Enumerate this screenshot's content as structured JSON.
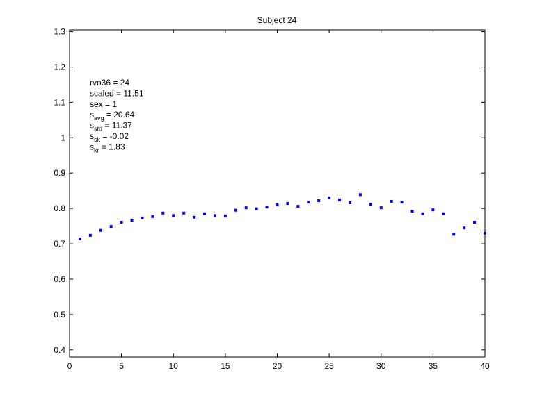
{
  "chart_data": {
    "type": "scatter",
    "title": "Subject 24",
    "xlabel": "",
    "ylabel": "",
    "xlim": [
      0,
      40
    ],
    "ylim": [
      0.38,
      1.305
    ],
    "xticks": [
      "0",
      "5",
      "10",
      "15",
      "20",
      "25",
      "30",
      "35",
      "40"
    ],
    "yticks": [
      "0.4",
      "0.5",
      "0.6",
      "0.7",
      "0.8",
      "0.9",
      "1",
      "1.1",
      "1.2",
      "1.3"
    ],
    "grid": false,
    "marker_color": "#0000ff",
    "series": [
      {
        "x": [
          1,
          2,
          3,
          4,
          5,
          6,
          7,
          8,
          9,
          10,
          11,
          12,
          13,
          14,
          15,
          16,
          17,
          18,
          19,
          20,
          21,
          22,
          23,
          24,
          25,
          26,
          27,
          28,
          29,
          30,
          31,
          32,
          33,
          34,
          35,
          36,
          37,
          38,
          39,
          40
        ],
        "y": [
          0.714,
          0.724,
          0.738,
          0.749,
          0.761,
          0.767,
          0.773,
          0.777,
          0.787,
          0.78,
          0.787,
          0.775,
          0.785,
          0.78,
          0.779,
          0.795,
          0.802,
          0.799,
          0.804,
          0.81,
          0.814,
          0.806,
          0.818,
          0.822,
          0.83,
          0.824,
          0.816,
          0.839,
          0.812,
          0.802,
          0.82,
          0.818,
          0.792,
          0.785,
          0.796,
          0.785,
          0.727,
          0.745,
          0.761,
          0.73
        ]
      }
    ],
    "annotations": [
      {
        "base": "rvn36 = 24",
        "sub": "",
        "rest": ""
      },
      {
        "base": "scaled = 11.51",
        "sub": "",
        "rest": ""
      },
      {
        "base": "sex   = 1",
        "sub": "",
        "rest": ""
      },
      {
        "base": "s",
        "sub": "avg",
        "rest": " = 20.64"
      },
      {
        "base": "s",
        "sub": "std",
        "rest": " = 11.37"
      },
      {
        "base": "s",
        "sub": "sk",
        "rest": " = -0.02"
      },
      {
        "base": "s",
        "sub": "kr",
        "rest": " = 1.83"
      }
    ]
  }
}
